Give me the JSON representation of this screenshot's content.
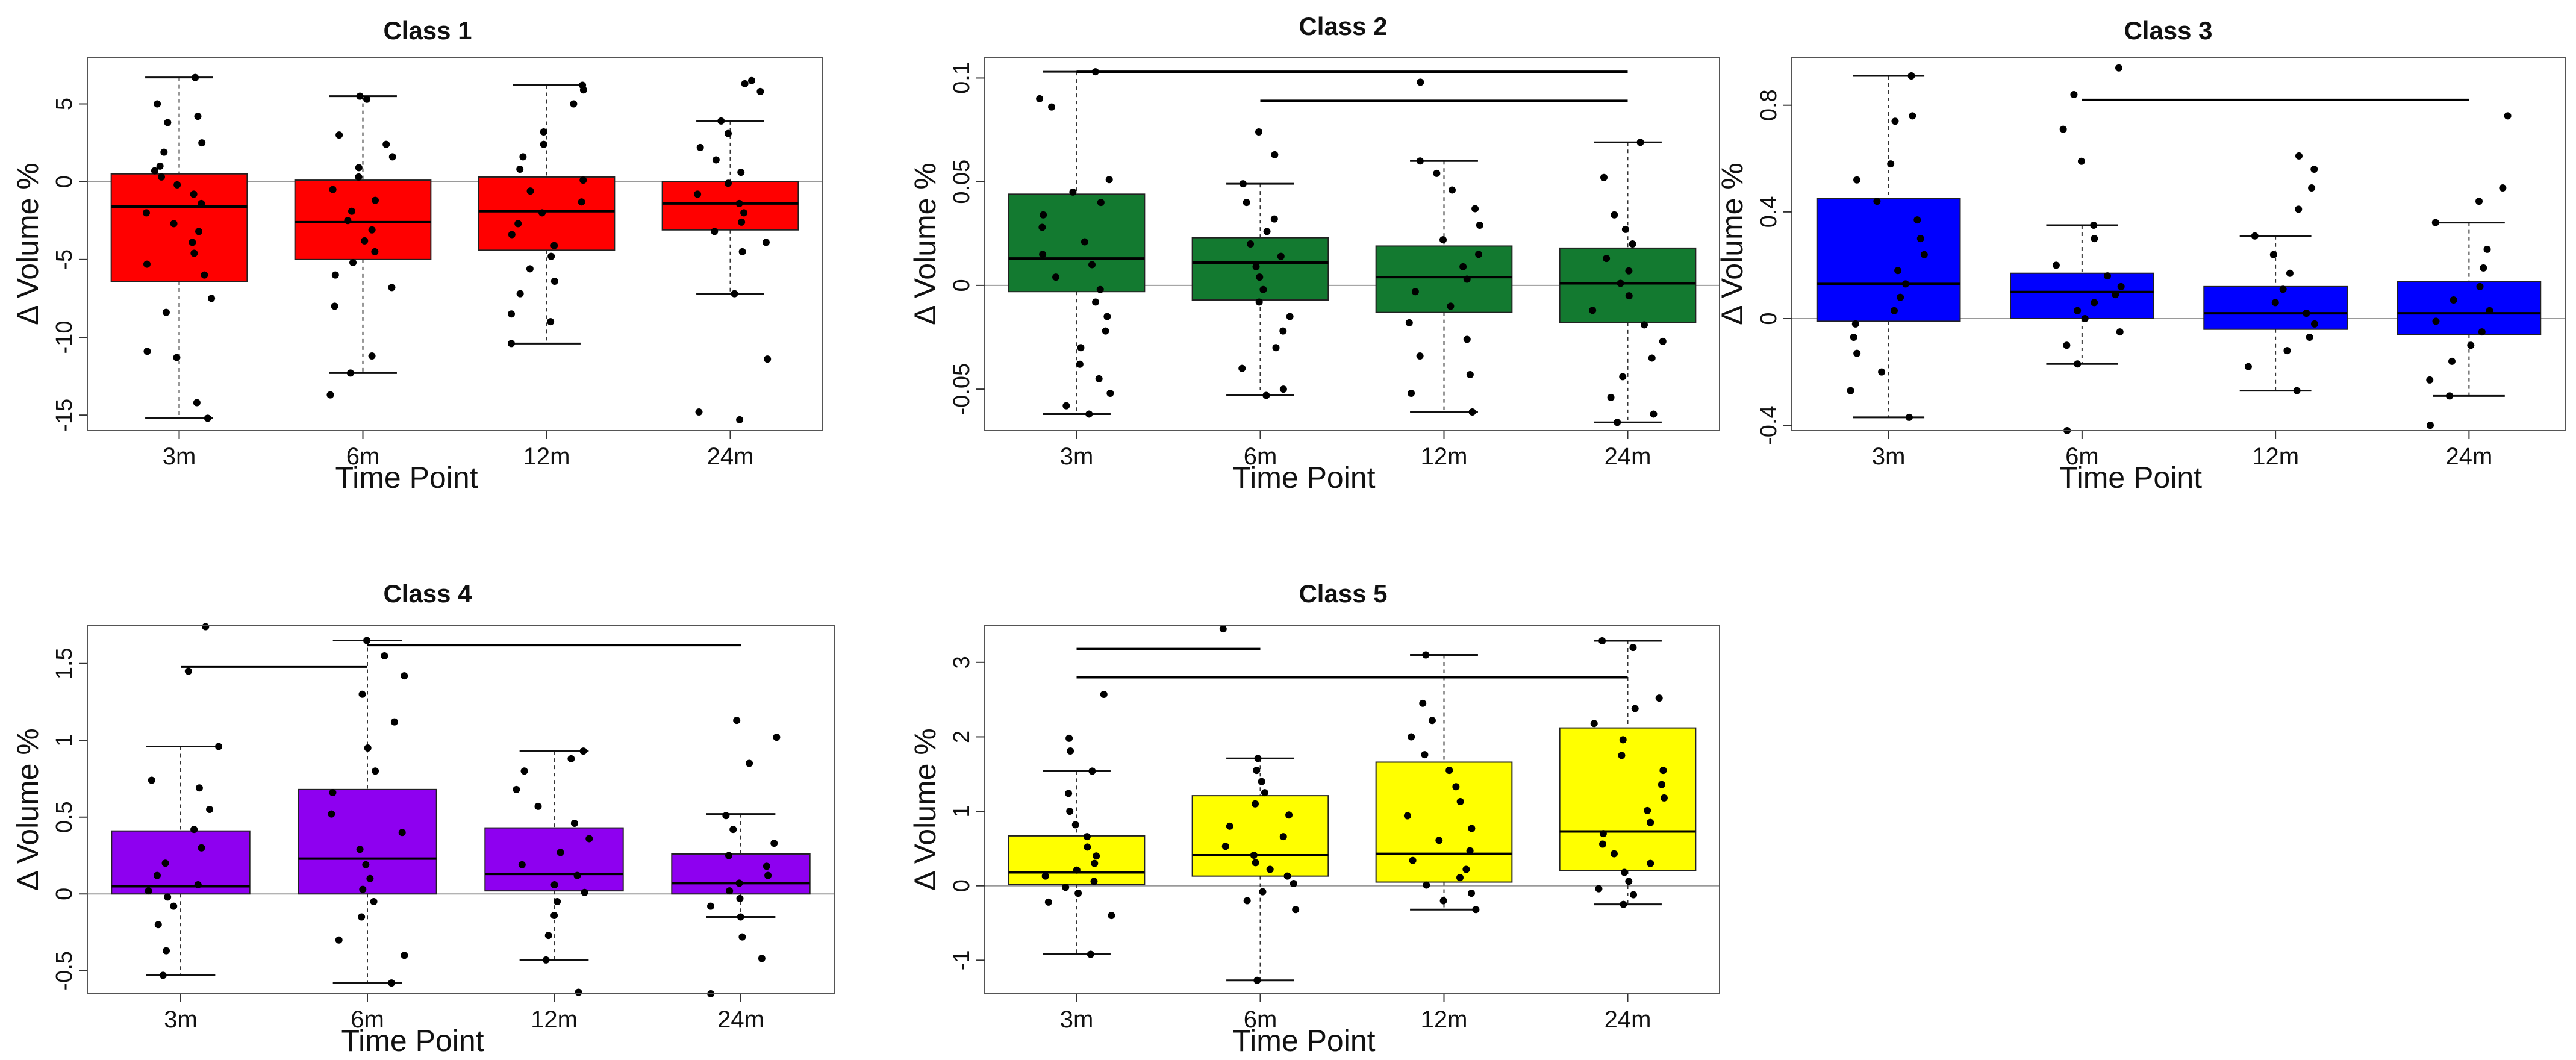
{
  "chart_data": [
    {
      "type": "boxplot",
      "title": "Class 1",
      "xlabel": "Time Point",
      "ylabel": "Δ Volume %",
      "categories": [
        "3m",
        "6m",
        "12m",
        "24m"
      ],
      "ylim": [
        -16,
        8
      ],
      "yticks": [
        5,
        0,
        -5,
        -10,
        -15
      ],
      "box_color": "#ff0000",
      "boxes": [
        {
          "q1": -6.4,
          "median": -1.6,
          "q3": 0.5,
          "whisker_low": -15.2,
          "whisker_high": 6.7
        },
        {
          "q1": -5.0,
          "median": -2.6,
          "q3": 0.1,
          "whisker_low": -12.3,
          "whisker_high": 5.5
        },
        {
          "q1": -4.4,
          "median": -1.9,
          "q3": 0.3,
          "whisker_low": -10.4,
          "whisker_high": 6.2
        },
        {
          "q1": -3.1,
          "median": -1.4,
          "q3": 0.0,
          "whisker_low": -7.2,
          "whisker_high": 3.9
        }
      ],
      "points": [
        [
          6.7,
          5.0,
          4.2,
          3.8,
          2.5,
          1.9,
          1.0,
          0.7,
          0.3,
          -0.2,
          -0.8,
          -1.4,
          -2.0,
          -2.7,
          -3.2,
          -3.9,
          -4.6,
          -5.3,
          -6.0,
          -7.5,
          -8.4,
          -10.9,
          -11.3,
          -14.2,
          -15.2
        ],
        [
          5.5,
          5.3,
          3.0,
          2.4,
          1.6,
          0.9,
          0.3,
          -0.5,
          -1.2,
          -1.9,
          -2.5,
          -3.1,
          -3.8,
          -4.5,
          -5.2,
          -6.0,
          -6.8,
          -8.0,
          -11.2,
          -12.3,
          -13.7
        ],
        [
          6.2,
          5.9,
          5.0,
          3.2,
          2.4,
          1.6,
          0.8,
          0.1,
          -0.6,
          -1.3,
          -2.0,
          -2.7,
          -3.4,
          -4.1,
          -4.8,
          -5.6,
          -6.4,
          -7.2,
          -8.5,
          -9.0,
          -10.4
        ],
        [
          6.5,
          6.3,
          5.8,
          3.9,
          3.1,
          2.2,
          1.4,
          0.6,
          -0.1,
          -0.8,
          -1.4,
          -2.0,
          -2.6,
          -3.2,
          -3.9,
          -4.5,
          -7.2,
          -11.4,
          -14.8,
          -15.3
        ]
      ],
      "significance": []
    },
    {
      "type": "boxplot",
      "title": "Class 2",
      "xlabel": "Time Point",
      "ylabel": "Δ Volume %",
      "categories": [
        "3m",
        "6m",
        "12m",
        "24m"
      ],
      "ylim": [
        -0.07,
        0.11
      ],
      "yticks": [
        0.1,
        0.05,
        0.0,
        -0.05
      ],
      "box_color": "#137a30",
      "boxes": [
        {
          "q1": -0.003,
          "median": 0.013,
          "q3": 0.044,
          "whisker_low": -0.062,
          "whisker_high": 0.103
        },
        {
          "q1": -0.007,
          "median": 0.011,
          "q3": 0.023,
          "whisker_low": -0.053,
          "whisker_high": 0.049
        },
        {
          "q1": -0.013,
          "median": 0.004,
          "q3": 0.019,
          "whisker_low": -0.061,
          "whisker_high": 0.06
        },
        {
          "q1": -0.018,
          "median": 0.001,
          "q3": 0.018,
          "whisker_low": -0.066,
          "whisker_high": 0.069
        }
      ],
      "points": [
        [
          0.103,
          0.09,
          0.086,
          0.051,
          0.045,
          0.04,
          0.034,
          0.028,
          0.021,
          0.015,
          0.01,
          0.004,
          -0.002,
          -0.008,
          -0.015,
          -0.022,
          -0.03,
          -0.038,
          -0.045,
          -0.052,
          -0.058,
          -0.062
        ],
        [
          0.074,
          0.063,
          0.049,
          0.04,
          0.032,
          0.026,
          0.02,
          0.014,
          0.009,
          0.004,
          -0.002,
          -0.008,
          -0.015,
          -0.022,
          -0.03,
          -0.04,
          -0.05,
          -0.053
        ],
        [
          0.098,
          0.06,
          0.054,
          0.046,
          0.037,
          0.029,
          0.022,
          0.015,
          0.009,
          0.003,
          -0.003,
          -0.01,
          -0.018,
          -0.026,
          -0.034,
          -0.043,
          -0.052,
          -0.061
        ],
        [
          0.069,
          0.052,
          0.034,
          0.027,
          0.02,
          0.013,
          0.007,
          0.001,
          -0.005,
          -0.012,
          -0.019,
          -0.027,
          -0.035,
          -0.044,
          -0.054,
          -0.062,
          -0.066
        ]
      ],
      "significance": [
        {
          "from": "3m",
          "to": "24m",
          "y": 0.103
        },
        {
          "from": "6m",
          "to": "24m",
          "y": 0.089
        }
      ]
    },
    {
      "type": "boxplot",
      "title": "Class 3",
      "xlabel": "Time Point",
      "ylabel": "Δ Volume %",
      "categories": [
        "3m",
        "6m",
        "12m",
        "24m"
      ],
      "ylim": [
        -0.42,
        0.98
      ],
      "yticks": [
        0.8,
        0.4,
        0.0,
        -0.4
      ],
      "box_color": "#0000ff",
      "boxes": [
        {
          "q1": -0.01,
          "median": 0.13,
          "q3": 0.45,
          "whisker_low": -0.37,
          "whisker_high": 0.91
        },
        {
          "q1": 0.0,
          "median": 0.1,
          "q3": 0.17,
          "whisker_low": -0.17,
          "whisker_high": 0.35
        },
        {
          "q1": -0.04,
          "median": 0.02,
          "q3": 0.12,
          "whisker_low": -0.27,
          "whisker_high": 0.31
        },
        {
          "q1": -0.06,
          "median": 0.02,
          "q3": 0.14,
          "whisker_low": -0.29,
          "whisker_high": 0.36
        }
      ],
      "points": [
        [
          0.91,
          0.76,
          0.74,
          0.58,
          0.52,
          0.44,
          0.37,
          0.3,
          0.24,
          0.18,
          0.13,
          0.08,
          0.03,
          -0.02,
          -0.07,
          -0.13,
          -0.2,
          -0.27,
          -0.37
        ],
        [
          0.94,
          0.84,
          0.71,
          0.59,
          0.35,
          0.3,
          0.2,
          0.16,
          0.12,
          0.09,
          0.06,
          0.03,
          0.0,
          -0.05,
          -0.1,
          -0.17,
          -0.42
        ],
        [
          0.61,
          0.56,
          0.49,
          0.41,
          0.31,
          0.24,
          0.17,
          0.11,
          0.06,
          0.02,
          -0.02,
          -0.07,
          -0.12,
          -0.18,
          -0.27
        ],
        [
          0.76,
          0.49,
          0.44,
          0.36,
          0.26,
          0.19,
          0.12,
          0.07,
          0.03,
          -0.01,
          -0.05,
          -0.1,
          -0.16,
          -0.23,
          -0.29,
          -0.4
        ]
      ],
      "significance": [
        {
          "from": "6m",
          "to": "24m",
          "y": 0.82
        }
      ]
    },
    {
      "type": "boxplot",
      "title": "Class 4",
      "xlabel": "Time Point",
      "ylabel": "Δ Volume %",
      "categories": [
        "3m",
        "6m",
        "12m",
        "24m"
      ],
      "ylim": [
        -0.65,
        1.75
      ],
      "yticks": [
        1.5,
        1.0,
        0.5,
        0.0,
        -0.5
      ],
      "box_color": "#8e00f0",
      "boxes": [
        {
          "q1": 0.0,
          "median": 0.05,
          "q3": 0.41,
          "whisker_low": -0.53,
          "whisker_high": 0.96
        },
        {
          "q1": 0.0,
          "median": 0.23,
          "q3": 0.68,
          "whisker_low": -0.58,
          "whisker_high": 1.65
        },
        {
          "q1": 0.02,
          "median": 0.13,
          "q3": 0.43,
          "whisker_low": -0.43,
          "whisker_high": 0.93
        },
        {
          "q1": 0.0,
          "median": 0.07,
          "q3": 0.26,
          "whisker_low": -0.15,
          "whisker_high": 0.52
        }
      ],
      "points": [
        [
          1.74,
          1.45,
          0.96,
          0.74,
          0.69,
          0.55,
          0.42,
          0.3,
          0.2,
          0.12,
          0.06,
          0.02,
          -0.02,
          -0.08,
          -0.2,
          -0.37,
          -0.53
        ],
        [
          1.65,
          1.55,
          1.42,
          1.3,
          1.12,
          0.95,
          0.8,
          0.66,
          0.52,
          0.4,
          0.29,
          0.19,
          0.1,
          0.03,
          -0.05,
          -0.15,
          -0.3,
          -0.4,
          -0.58
        ],
        [
          0.93,
          0.88,
          0.8,
          0.68,
          0.57,
          0.46,
          0.36,
          0.27,
          0.19,
          0.12,
          0.06,
          0.01,
          -0.05,
          -0.14,
          -0.27,
          -0.43,
          -0.64
        ],
        [
          1.13,
          1.02,
          0.85,
          0.51,
          0.42,
          0.33,
          0.25,
          0.18,
          0.12,
          0.07,
          0.02,
          -0.03,
          -0.08,
          -0.15,
          -0.28,
          -0.42,
          -0.65
        ]
      ],
      "significance": [
        {
          "from": "3m",
          "to": "6m",
          "y": 1.48
        },
        {
          "from": "6m",
          "to": "24m",
          "y": 1.62
        }
      ]
    },
    {
      "type": "boxplot",
      "title": "Class 5",
      "xlabel": "Time Point",
      "ylabel": "Δ Volume %",
      "categories": [
        "3m",
        "6m",
        "12m",
        "24m"
      ],
      "ylim": [
        -1.45,
        3.5
      ],
      "yticks": [
        3,
        2,
        1,
        0,
        -1
      ],
      "box_color": "#ffff00",
      "boxes": [
        {
          "q1": 0.02,
          "median": 0.18,
          "q3": 0.67,
          "whisker_low": -0.92,
          "whisker_high": 1.54
        },
        {
          "q1": 0.13,
          "median": 0.41,
          "q3": 1.21,
          "whisker_low": -1.27,
          "whisker_high": 1.71
        },
        {
          "q1": 0.05,
          "median": 0.43,
          "q3": 1.66,
          "whisker_low": -0.32,
          "whisker_high": 3.1
        },
        {
          "q1": 0.2,
          "median": 0.73,
          "q3": 2.12,
          "whisker_low": -0.25,
          "whisker_high": 3.29
        }
      ],
      "points": [
        [
          2.57,
          1.98,
          1.81,
          1.54,
          1.24,
          1.0,
          0.82,
          0.66,
          0.52,
          0.4,
          0.3,
          0.21,
          0.13,
          0.06,
          -0.02,
          -0.1,
          -0.22,
          -0.4,
          -0.92
        ],
        [
          3.45,
          1.71,
          1.55,
          1.4,
          1.25,
          1.1,
          0.95,
          0.8,
          0.66,
          0.53,
          0.41,
          0.31,
          0.22,
          0.13,
          0.03,
          -0.08,
          -0.2,
          -0.32,
          -1.27
        ],
        [
          3.1,
          2.45,
          2.22,
          2.0,
          1.76,
          1.55,
          1.33,
          1.13,
          0.94,
          0.77,
          0.61,
          0.47,
          0.34,
          0.22,
          0.11,
          0.01,
          -0.1,
          -0.2,
          -0.32
        ],
        [
          3.29,
          3.2,
          2.52,
          2.38,
          2.18,
          1.96,
          1.75,
          1.55,
          1.36,
          1.18,
          1.01,
          0.85,
          0.7,
          0.56,
          0.43,
          0.3,
          0.18,
          0.06,
          -0.04,
          -0.12,
          -0.25
        ]
      ],
      "significance": [
        {
          "from": "3m",
          "to": "6m",
          "y": 3.18
        },
        {
          "from": "3m",
          "to": "24m",
          "y": 2.8
        }
      ]
    }
  ]
}
